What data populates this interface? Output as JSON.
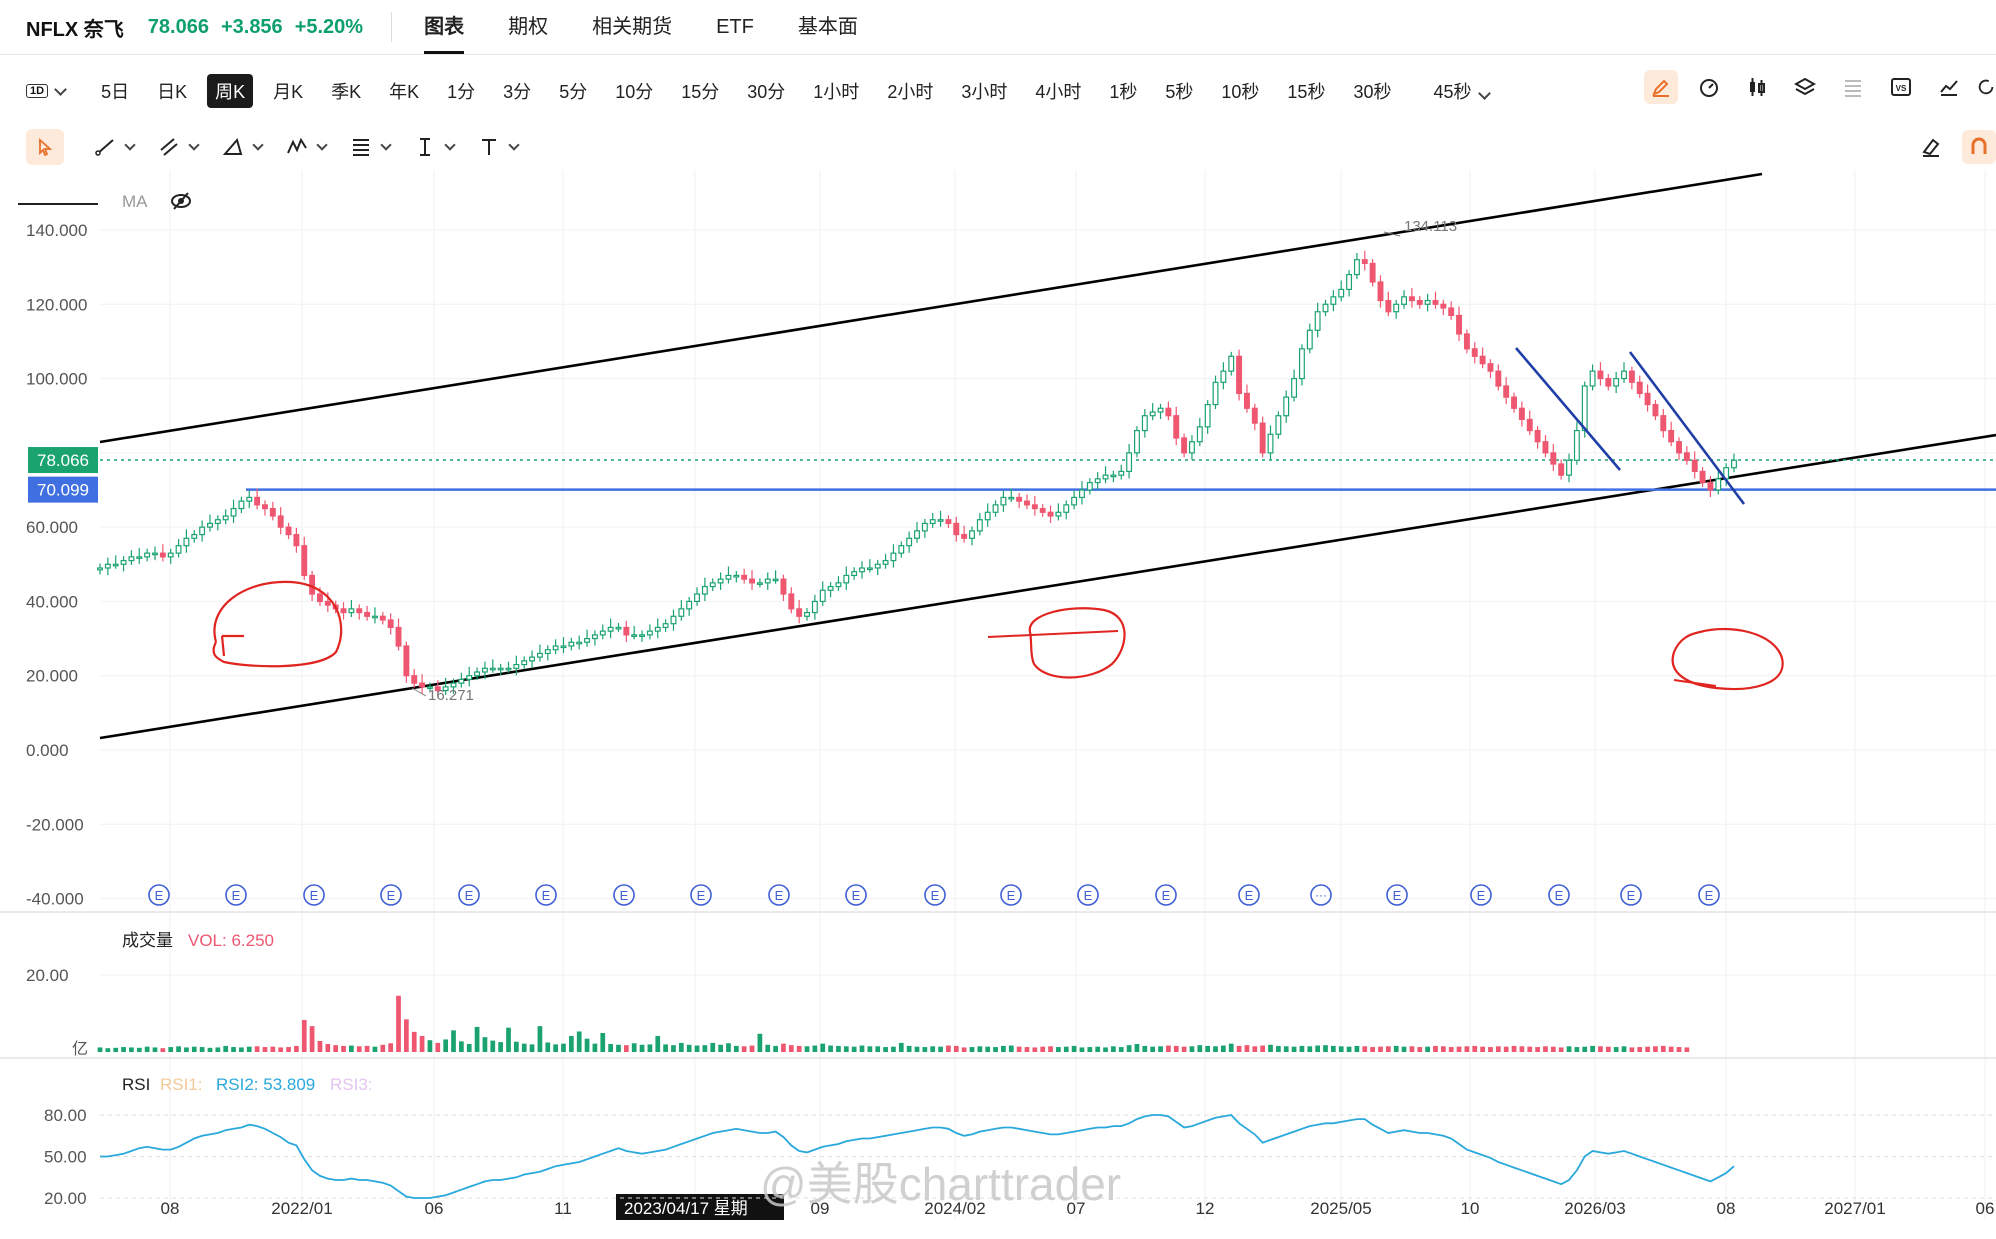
{
  "header": {
    "symbol": "NFLX 奈飞",
    "price": "78.066",
    "change": "+3.856",
    "change_pct": "+5.20%",
    "tabs": [
      {
        "label": "图表",
        "active": true
      },
      {
        "label": "期权"
      },
      {
        "label": "相关期货"
      },
      {
        "label": "ETF"
      },
      {
        "label": "基本面"
      }
    ]
  },
  "toolbar": {
    "selector_label": "1D",
    "timeframes": [
      "5日",
      "日K",
      "周K",
      "月K",
      "季K",
      "年K",
      "1分",
      "3分",
      "5分",
      "10分",
      "15分",
      "30分",
      "1小时",
      "2小时",
      "3小时",
      "4小时",
      "1秒",
      "5秒",
      "10秒",
      "15秒",
      "30秒"
    ],
    "active_timeframe": "周K",
    "extra_timeframe": "45秒",
    "right_icons": [
      "pen-icon",
      "gauge-icon",
      "candle-icon",
      "layers-icon",
      "list-icon",
      "vs-icon",
      "chart-line-icon",
      "refresh-icon"
    ],
    "draw_icons": [
      "cursor-icon",
      "line-icon",
      "channel-icon",
      "triangle-icon",
      "pattern-icon",
      "fib-icon",
      "text-cursor-icon",
      "text-icon"
    ],
    "draw_right_icons": [
      "eraser-icon",
      "magnet-icon"
    ]
  },
  "colors": {
    "up": "#1aa36f",
    "down": "#ef5670",
    "rsi": "#29a8dc",
    "hline": "#3f6fe0",
    "annot": "#e0241f",
    "trend": "#1f3fa8"
  },
  "chart_data": {
    "type": "candlestick",
    "indicator_label": "MA",
    "y_ticks": [
      "140.000",
      "120.000",
      "100.000",
      "80.000",
      "60.000",
      "40.000",
      "20.000",
      "0.000",
      "-20.000",
      "-40.000"
    ],
    "x_ticks": [
      "08",
      "2022/01",
      "06",
      "11",
      "2023/04/17 星期",
      "09",
      "2024/02",
      "07",
      "12",
      "2025/05",
      "10",
      "2026/03",
      "08",
      "2027/01",
      "06"
    ],
    "last_price_label": "78.066",
    "hline_label": "70.099",
    "hline_value": 70.099,
    "high_label": "134.113",
    "low_label": "16.271",
    "series": [
      {
        "name": "NFLX",
        "values": [
          49,
          50,
          50,
          51,
          52,
          52,
          53,
          53,
          52,
          53,
          55,
          57,
          58,
          60,
          61,
          62,
          63,
          65,
          67,
          68,
          66,
          65,
          63,
          60,
          58,
          55,
          47,
          42,
          40,
          39,
          38,
          37,
          38,
          37,
          36,
          36,
          35,
          33,
          28,
          20,
          18,
          17,
          17,
          16,
          17,
          18,
          19,
          20,
          21,
          22,
          22,
          22,
          22,
          23,
          24,
          25,
          26,
          27,
          28,
          28,
          29,
          29,
          30,
          31,
          32,
          33,
          33,
          31,
          31,
          31,
          32,
          33,
          34,
          36,
          38,
          40,
          42,
          44,
          45,
          46,
          47,
          47,
          46,
          45,
          45,
          46,
          46,
          42,
          38,
          36,
          37,
          40,
          43,
          44,
          45,
          47,
          48,
          49,
          49,
          50,
          51,
          53,
          55,
          57,
          59,
          61,
          62,
          62,
          61,
          58,
          57,
          59,
          62,
          64,
          66,
          68,
          68,
          67,
          66,
          65,
          64,
          63,
          64,
          66,
          68,
          70,
          72,
          73,
          74,
          74,
          75,
          80,
          86,
          90,
          91,
          92,
          90,
          84,
          80,
          83,
          87,
          93,
          99,
          102,
          106,
          96,
          92,
          88,
          80,
          85,
          90,
          95,
          100,
          108,
          113,
          118,
          120,
          122,
          124,
          128,
          132,
          131,
          126,
          121,
          118,
          120,
          122,
          121,
          120,
          121,
          120,
          119,
          117,
          112,
          108,
          106,
          104,
          102,
          98,
          95,
          92,
          89,
          86,
          83,
          80,
          77,
          74,
          78,
          86,
          98,
          102,
          100,
          98,
          100,
          102,
          99,
          96,
          93,
          90,
          86,
          83,
          80,
          78,
          75,
          72,
          70,
          73,
          76,
          78
        ]
      },
      {
        "name": "VOL",
        "values": [
          1.2,
          1.0,
          1.1,
          1.3,
          1.2,
          1.1,
          1.4,
          1.2,
          1.0,
          1.3,
          1.5,
          1.2,
          1.4,
          1.3,
          1.1,
          1.2,
          1.6,
          1.3,
          1.2,
          1.4,
          1.5,
          1.3,
          1.4,
          1.2,
          1.3,
          1.6,
          8.4,
          6.8,
          2.9,
          2.1,
          1.8,
          1.6,
          1.7,
          1.5,
          1.6,
          1.4,
          1.9,
          2.3,
          14.8,
          8.6,
          5.3,
          4.2,
          3.1,
          2.4,
          3.3,
          5.7,
          2.8,
          2.1,
          6.6,
          3.9,
          3.0,
          2.6,
          6.4,
          2.7,
          2.2,
          2.0,
          6.8,
          2.5,
          2.0,
          2.2,
          4.2,
          5.4,
          3.5,
          2.2,
          5.0,
          2.1,
          1.9,
          1.8,
          2.3,
          1.9,
          2.0,
          4.2,
          2.0,
          1.8,
          2.4,
          1.9,
          1.7,
          1.8,
          2.4,
          1.9,
          2.3,
          1.6,
          1.5,
          1.7,
          4.8,
          1.9,
          1.6,
          2.2,
          1.8,
          1.6,
          1.5,
          1.7,
          2.2,
          1.7,
          1.6,
          1.5,
          1.4,
          1.7,
          1.5,
          1.5,
          1.3,
          1.4,
          2.4,
          1.6,
          1.4,
          1.3,
          1.5,
          1.4,
          1.7,
          1.6,
          1.2,
          1.3,
          1.5,
          1.4,
          1.3,
          1.6,
          1.7,
          1.4,
          1.3,
          1.2,
          1.4,
          1.5,
          1.3,
          1.4,
          1.6,
          1.2,
          1.3,
          1.4,
          1.2,
          1.5,
          1.3,
          1.8,
          2.1,
          1.6,
          1.4,
          1.5,
          1.7,
          1.6,
          1.4,
          1.5,
          1.8,
          1.6,
          1.5,
          1.7,
          2.2,
          1.6,
          1.8,
          1.5,
          1.7,
          1.9,
          1.6,
          1.5,
          1.4,
          1.6,
          1.5,
          1.7,
          1.8,
          1.6,
          1.5,
          1.4,
          1.6,
          1.5,
          1.3,
          1.4,
          1.5,
          1.6,
          1.4,
          1.5,
          1.3,
          1.4,
          1.6,
          1.5,
          1.3,
          1.4,
          1.5,
          1.6,
          1.4,
          1.3,
          1.5,
          1.4,
          1.6,
          1.5,
          1.4,
          1.3,
          1.5,
          1.4,
          1.2,
          1.5,
          1.3,
          1.4,
          1.6,
          1.5,
          1.4,
          1.3,
          1.5,
          1.2,
          1.3,
          1.4,
          1.5,
          1.6,
          1.4,
          1.3,
          1.2
        ]
      },
      {
        "name": "RSI",
        "values": [
          50,
          50,
          51,
          52,
          54,
          56,
          57,
          56,
          55,
          55,
          57,
          60,
          63,
          65,
          66,
          67,
          69,
          70,
          71,
          73,
          72,
          70,
          67,
          64,
          60,
          58,
          48,
          40,
          36,
          34,
          33,
          33,
          34,
          33,
          33,
          32,
          31,
          29,
          25,
          21,
          20,
          20,
          20,
          21,
          22,
          24,
          26,
          28,
          30,
          32,
          33,
          33,
          34,
          35,
          37,
          38,
          39,
          41,
          43,
          44,
          45,
          46,
          48,
          50,
          52,
          54,
          56,
          54,
          53,
          52,
          53,
          54,
          55,
          57,
          59,
          61,
          63,
          65,
          67,
          68,
          69,
          70,
          69,
          68,
          67,
          67,
          68,
          64,
          58,
          54,
          53,
          55,
          57,
          58,
          59,
          61,
          62,
          63,
          63,
          64,
          65,
          66,
          67,
          68,
          69,
          70,
          71,
          71,
          70,
          67,
          65,
          66,
          68,
          69,
          70,
          71,
          71,
          70,
          69,
          68,
          67,
          66,
          66,
          67,
          68,
          69,
          70,
          71,
          71,
          72,
          72,
          74,
          77,
          79,
          80,
          80,
          79,
          75,
          71,
          72,
          74,
          76,
          78,
          79,
          80,
          74,
          70,
          66,
          60,
          62,
          64,
          66,
          68,
          70,
          72,
          73,
          74,
          74,
          75,
          76,
          77,
          77,
          73,
          70,
          67,
          68,
          69,
          68,
          67,
          67,
          66,
          65,
          63,
          59,
          55,
          53,
          51,
          49,
          46,
          44,
          42,
          40,
          38,
          36,
          34,
          32,
          30,
          33,
          40,
          50,
          54,
          53,
          52,
          53,
          54,
          52,
          50,
          48,
          46,
          44,
          42,
          40,
          38,
          36,
          34,
          32,
          35,
          38,
          43
        ]
      }
    ],
    "volume_label": "成交量",
    "volume_value": "VOL: 6.250",
    "volume_ticks": [
      "20.00",
      "亿"
    ],
    "rsi_label": "RSI",
    "rsi1_label": "RSI1:",
    "rsi2_label": "RSI2: 53.809",
    "rsi3_label": "RSI3:",
    "rsi_ticks": [
      "80.00",
      "50.00",
      "20.00"
    ],
    "event_marker": "E",
    "watermark": "@美股charttrader"
  }
}
